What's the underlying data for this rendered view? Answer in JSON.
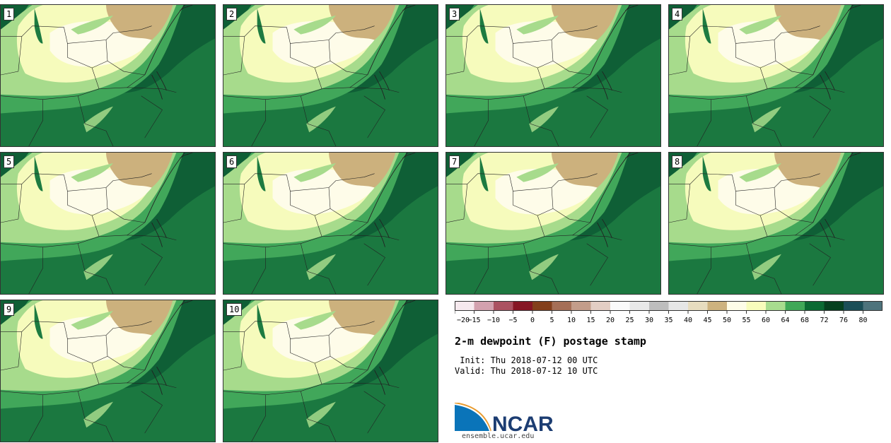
{
  "members": [
    "1",
    "2",
    "3",
    "4",
    "5",
    "6",
    "7",
    "8",
    "9",
    "10"
  ],
  "colorbar": {
    "colors": [
      "#f6e9ee",
      "#d3a1ae",
      "#ab5261",
      "#861624",
      "#833f1b",
      "#a56f57",
      "#c39d8a",
      "#e3cec4",
      "#fafafa",
      "#e8e8e8",
      "#bdbdbd",
      "#e6e6e6",
      "#e7dcbf",
      "#cdb27f",
      "#fefce8",
      "#f8fcbc",
      "#a8dc8f",
      "#40a858",
      "#0b6a33",
      "#06401f",
      "#1b4e57",
      "#4e737c"
    ],
    "ticks": [
      "−20",
      "−15",
      "−10",
      "−5",
      "0",
      "5",
      "10",
      "15",
      "20",
      "25",
      "30",
      "35",
      "40",
      "45",
      "50",
      "55",
      "60",
      "64",
      "68",
      "72",
      "76",
      "80"
    ]
  },
  "title": "2-m dewpoint (F) postage stamp",
  "init": " Init: Thu 2018-07-12 00 UTC",
  "valid": "Valid: Thu 2018-07-12 10 UTC",
  "logo": {
    "text": "NCAR",
    "url": "ensemble.ucar.edu"
  }
}
